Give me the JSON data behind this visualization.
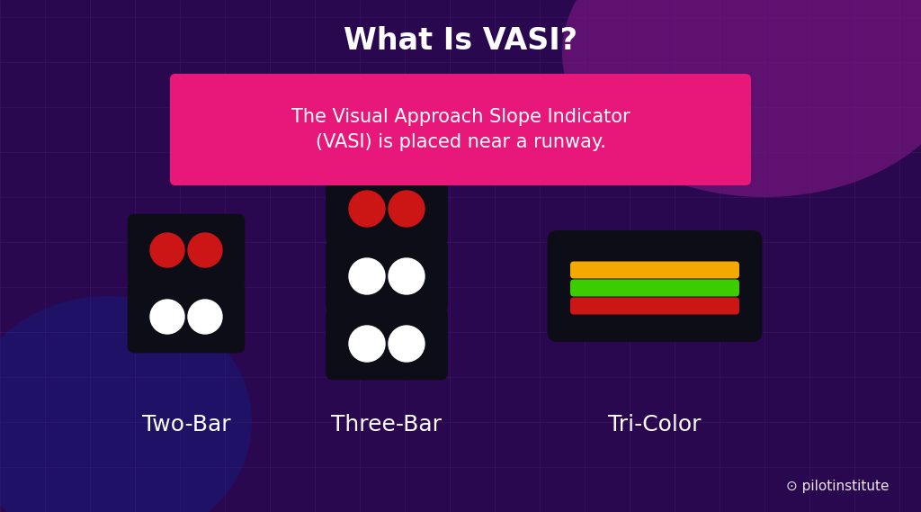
{
  "title": "What Is VASI?",
  "subtitle": "The Visual Approach Slope Indicator\n(VASI) is placed near a runway.",
  "subtitle_bg": "#e8187a",
  "subtitle_text_color": "#ffffff",
  "title_color": "#ffffff",
  "label_color": "#ffffff",
  "label_two_bar": "Two-Bar",
  "label_three_bar": "Three-Bar",
  "label_tri_color": "Tri-Color",
  "red_circle": "#cc1515",
  "white_circle": "#ffffff",
  "black_box": "#0d0d18",
  "yellow_bar": "#f5a800",
  "green_bar": "#3dcc00",
  "red_bar": "#cc1515",
  "grid_color": "#5a2a8a",
  "watermark_color": "#ffffff",
  "bg_base": "#2a0850",
  "bg_glow_tr_color": "#8a1a8a",
  "bg_glow_bl_color": "#1a1060",
  "bg_glow_c_color": "#4a0a7a"
}
